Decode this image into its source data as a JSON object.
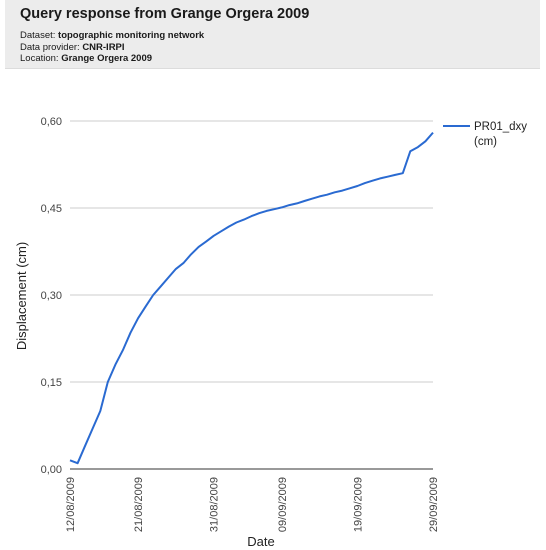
{
  "header": {
    "title": "Query response from Grange Orgera 2009",
    "dataset_label": "Dataset:",
    "dataset": "topographic monitoring network",
    "provider_label": "Data provider:",
    "provider": "CNR-IRPI",
    "location_label": "Location:",
    "location": "Grange Orgera 2009"
  },
  "chart_data": {
    "type": "line",
    "title": "",
    "xlabel": "Date",
    "ylabel": "Displacement (cm)",
    "x_range": [
      "2009-08-12",
      "2009-09-29"
    ],
    "ylim": [
      0,
      0.6
    ],
    "y_ticks": [
      0.0,
      0.15,
      0.3,
      0.45,
      0.6
    ],
    "y_tick_labels": [
      "0,00",
      "0,15",
      "0,30",
      "0,45",
      "0,60"
    ],
    "x_tick_labels": [
      "12/08/2009",
      "21/08/2009",
      "31/08/2009",
      "09/09/2009",
      "19/09/2009",
      "29/09/2009"
    ],
    "x_tick_dates": [
      "2009-08-12",
      "2009-08-21",
      "2009-08-31",
      "2009-09-09",
      "2009-09-19",
      "2009-09-29"
    ],
    "grid": true,
    "legend_position": "right",
    "series": [
      {
        "name": "PR01_dxy (cm)",
        "color": "#2a6ad1",
        "points": [
          [
            "2009-08-12",
            0.015
          ],
          [
            "2009-08-13",
            0.01
          ],
          [
            "2009-08-14",
            0.04
          ],
          [
            "2009-08-15",
            0.07
          ],
          [
            "2009-08-16",
            0.1
          ],
          [
            "2009-08-17",
            0.15
          ],
          [
            "2009-08-18",
            0.18
          ],
          [
            "2009-08-19",
            0.205
          ],
          [
            "2009-08-20",
            0.235
          ],
          [
            "2009-08-21",
            0.26
          ],
          [
            "2009-08-22",
            0.28
          ],
          [
            "2009-08-23",
            0.3
          ],
          [
            "2009-08-24",
            0.315
          ],
          [
            "2009-08-25",
            0.33
          ],
          [
            "2009-08-26",
            0.345
          ],
          [
            "2009-08-27",
            0.355
          ],
          [
            "2009-08-28",
            0.37
          ],
          [
            "2009-08-29",
            0.383
          ],
          [
            "2009-08-30",
            0.392
          ],
          [
            "2009-08-31",
            0.402
          ],
          [
            "2009-09-01",
            0.41
          ],
          [
            "2009-09-02",
            0.418
          ],
          [
            "2009-09-03",
            0.425
          ],
          [
            "2009-09-04",
            0.43
          ],
          [
            "2009-09-05",
            0.436
          ],
          [
            "2009-09-06",
            0.441
          ],
          [
            "2009-09-07",
            0.445
          ],
          [
            "2009-09-08",
            0.448
          ],
          [
            "2009-09-09",
            0.451
          ],
          [
            "2009-09-10",
            0.455
          ],
          [
            "2009-09-11",
            0.458
          ],
          [
            "2009-09-12",
            0.462
          ],
          [
            "2009-09-13",
            0.466
          ],
          [
            "2009-09-14",
            0.47
          ],
          [
            "2009-09-15",
            0.473
          ],
          [
            "2009-09-16",
            0.477
          ],
          [
            "2009-09-17",
            0.48
          ],
          [
            "2009-09-18",
            0.484
          ],
          [
            "2009-09-19",
            0.488
          ],
          [
            "2009-09-20",
            0.493
          ],
          [
            "2009-09-21",
            0.497
          ],
          [
            "2009-09-22",
            0.501
          ],
          [
            "2009-09-23",
            0.504
          ],
          [
            "2009-09-24",
            0.507
          ],
          [
            "2009-09-25",
            0.51
          ],
          [
            "2009-09-26",
            0.548
          ],
          [
            "2009-09-27",
            0.555
          ],
          [
            "2009-09-28",
            0.565
          ],
          [
            "2009-09-29",
            0.58
          ]
        ]
      }
    ]
  }
}
